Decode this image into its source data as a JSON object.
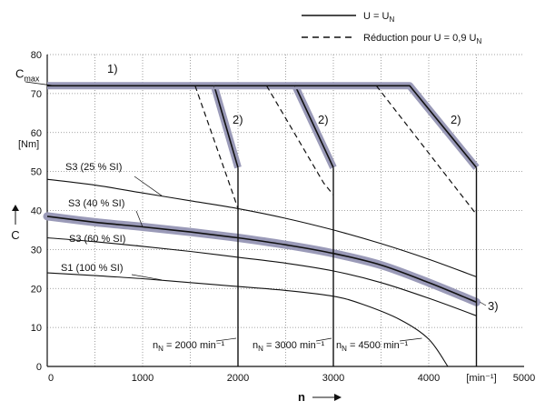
{
  "chart_data": {
    "type": "line",
    "title": "",
    "xlabel": "n",
    "xunit": "[min⁻¹]",
    "ylabel": "C",
    "ylabel_max": "C",
    "ylabel_max_sub": "max",
    "yunit": "[Nm]",
    "xlim": [
      0,
      5000
    ],
    "ylim": [
      0,
      80
    ],
    "xticks": [
      0,
      1000,
      2000,
      3000,
      4000,
      5000
    ],
    "yticks": [
      0,
      10,
      20,
      30,
      40,
      50,
      60,
      70,
      80
    ],
    "grid": "dotted",
    "legend": {
      "placement": "top-right",
      "entries": [
        {
          "style": "solid",
          "text": "U = U",
          "sub": "N"
        },
        {
          "style": "dashed",
          "text": "Réduction pour U = 0,9 U",
          "sub": "N"
        }
      ]
    },
    "series": [
      {
        "name": "S3 (25 % SI)",
        "style": "thin",
        "x": [
          0,
          500,
          1000,
          1500,
          2000,
          2500,
          3000,
          3500,
          4000,
          4500
        ],
        "y": [
          48,
          46.5,
          44.5,
          42.5,
          40.5,
          38,
          35,
          31.5,
          27.5,
          23
        ]
      },
      {
        "name": "S3 (40 % SI)",
        "style": "highlight",
        "x": [
          0,
          500,
          1000,
          1500,
          2000,
          2500,
          3000,
          3500,
          4000,
          4500
        ],
        "y": [
          38.5,
          37,
          35.8,
          34.5,
          33,
          31.2,
          29,
          26,
          21.5,
          16.5
        ]
      },
      {
        "name": "S3 (60 % SI)",
        "style": "thin",
        "x": [
          0,
          500,
          1000,
          1500,
          2000,
          2500,
          3000,
          3500,
          4000,
          4500
        ],
        "y": [
          33,
          32,
          30.8,
          29.5,
          28,
          26.5,
          24.5,
          21.5,
          17.5,
          13
        ]
      },
      {
        "name": "S1 (100 % SI)",
        "style": "thin",
        "x": [
          0,
          500,
          1000,
          1500,
          2000,
          2500,
          3000,
          3300,
          3700,
          4000,
          4200
        ],
        "y": [
          24,
          23.3,
          22.5,
          21.5,
          20.5,
          19.5,
          18,
          16,
          12,
          7,
          0
        ]
      }
    ],
    "limit_curves": [
      {
        "label": "n",
        "label_sub": "N",
        "label_value": " = 2000 min⁻¹",
        "n_nominal": 2000,
        "solid": [
          [
            0,
            72
          ],
          [
            1750,
            72
          ],
          [
            2000,
            51
          ]
        ],
        "dashed": [
          [
            1550,
            72
          ],
          [
            1950,
            44
          ],
          [
            2000,
            40.5
          ]
        ]
      },
      {
        "label": "n",
        "label_sub": "N",
        "label_value": " = 3000 min⁻¹",
        "n_nominal": 3000,
        "solid": [
          [
            1750,
            72
          ],
          [
            2600,
            72
          ],
          [
            3000,
            51
          ]
        ],
        "dashed": [
          [
            2300,
            72
          ],
          [
            2900,
            47
          ],
          [
            3000,
            44
          ]
        ]
      },
      {
        "label": "n",
        "label_sub": "N",
        "label_value": " = 4500 min⁻¹",
        "n_nominal": 4500,
        "solid": [
          [
            2600,
            72
          ],
          [
            3800,
            72
          ],
          [
            4500,
            51
          ]
        ],
        "dashed": [
          [
            3450,
            72
          ],
          [
            4500,
            39
          ]
        ]
      }
    ],
    "annotations": [
      "1)",
      "2)",
      "2)",
      "2)",
      "3)"
    ]
  }
}
